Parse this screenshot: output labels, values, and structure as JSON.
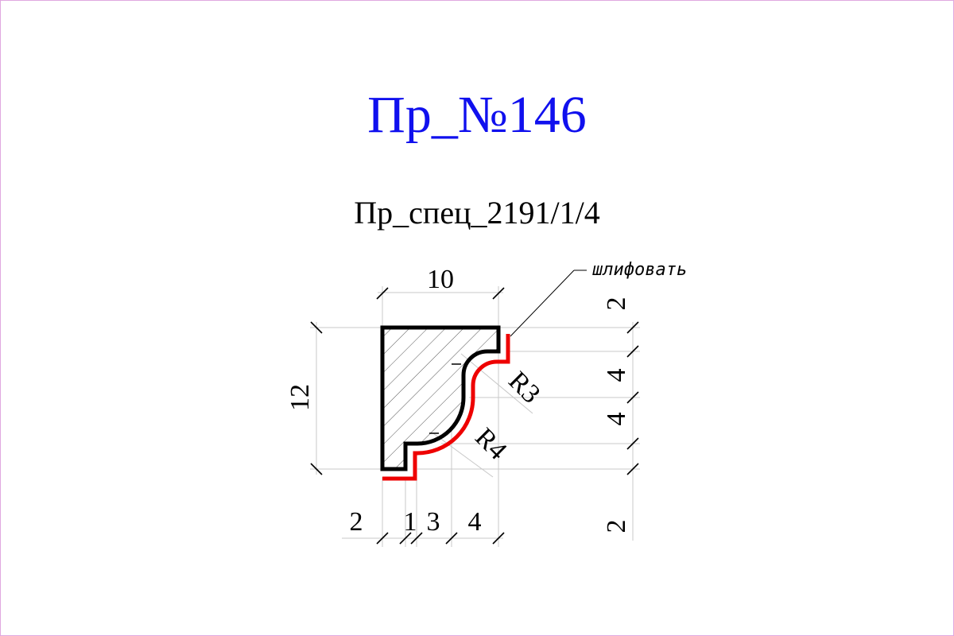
{
  "title": "Пр_№146",
  "subtitle": "Пр_спец_2191/1/4",
  "note": "шлифовать",
  "dimensions": {
    "width_top": "10",
    "height_left": "12",
    "bottom": [
      "2",
      "1",
      "3",
      "4"
    ],
    "right": [
      "2",
      "4",
      "4",
      "2"
    ],
    "radius_upper": "R3",
    "radius_lower": "R4"
  },
  "colors": {
    "title": "#1010ee",
    "profile": "#000000",
    "sanding_line": "#ee0000",
    "frame": "#e0a8e0"
  }
}
